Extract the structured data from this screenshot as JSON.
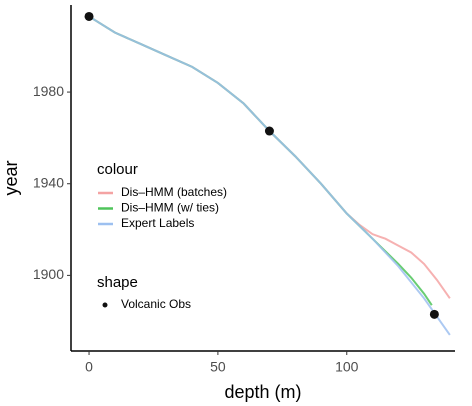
{
  "chart_data": {
    "type": "line",
    "x_label": "depth (m)",
    "y_label": "year",
    "xlim": [
      -7,
      142
    ],
    "xticks": [
      0,
      50,
      100
    ],
    "ylim": [
      1867,
      2018
    ],
    "yticks": [
      1900,
      1940,
      1980
    ],
    "grid": false,
    "legend_titles": [
      "colour",
      "shape"
    ],
    "series": [
      {
        "name": "Dis–HMM (batches)",
        "color": "#f4a3a3",
        "x": [
          0,
          10,
          20,
          30,
          40,
          50,
          60,
          70,
          80,
          90,
          100,
          105,
          110,
          115,
          120,
          125,
          130,
          135,
          140
        ],
        "values": [
          2013,
          2006,
          2001,
          1996,
          1991,
          1984,
          1975,
          1963,
          1952,
          1940,
          1927,
          1922,
          1918,
          1916,
          1913,
          1910,
          1905,
          1898,
          1890
        ]
      },
      {
        "name": "Dis–HMM (w/ ties)",
        "color": "#4fc45a",
        "x": [
          0,
          10,
          20,
          30,
          40,
          50,
          60,
          70,
          80,
          90,
          100,
          110,
          120,
          125,
          130,
          133
        ],
        "values": [
          2013,
          2006,
          2001,
          1996,
          1991,
          1984,
          1975,
          1963,
          1952,
          1940,
          1927,
          1916,
          1905,
          1899,
          1892,
          1887
        ]
      },
      {
        "name": "Expert Labels",
        "color": "#9dc0f0",
        "x": [
          0,
          10,
          20,
          30,
          40,
          50,
          60,
          70,
          80,
          90,
          100,
          110,
          120,
          130,
          140
        ],
        "values": [
          2013,
          2006,
          2001,
          1996,
          1991,
          1984,
          1975,
          1963,
          1952,
          1940,
          1927,
          1916,
          1904,
          1890,
          1874
        ]
      }
    ],
    "points": {
      "name": "Volcanic Obs",
      "color": "#111111",
      "x": [
        0,
        70,
        134
      ],
      "values": [
        2013,
        1963,
        1883
      ]
    }
  }
}
